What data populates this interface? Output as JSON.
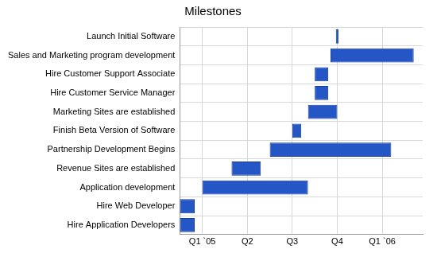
{
  "chart_data": {
    "type": "bar",
    "title": "Milestones",
    "orientation": "horizontal",
    "categories": [
      "Launch Initial Software",
      "Sales and Marketing program development",
      "Hire Customer Support Associate",
      "Hire Customer Service Manager",
      "Marketing Sites are established",
      "Finish Beta Version of Software",
      "Partnership Development Begins",
      "Revenue Sites are established",
      "Application development",
      "Hire Web Developer",
      "Hire Application Developers"
    ],
    "values": [
      [
        3.47,
        3.53
      ],
      [
        3.35,
        5.2
      ],
      [
        3.0,
        3.3
      ],
      [
        3.0,
        3.3
      ],
      [
        2.85,
        3.5
      ],
      [
        2.5,
        2.7
      ],
      [
        2.0,
        4.7
      ],
      [
        1.15,
        1.8
      ],
      [
        0.5,
        2.85
      ],
      [
        0,
        0.33
      ],
      [
        0,
        0.33
      ]
    ],
    "color": "#2457c5",
    "xlim": [
      0,
      5.4
    ],
    "xticks": [
      {
        "value": 0.5,
        "label": "Q1 `05"
      },
      {
        "value": 1.5,
        "label": "Q2"
      },
      {
        "value": 2.5,
        "label": "Q3"
      },
      {
        "value": 3.5,
        "label": "Q4"
      },
      {
        "value": 4.5,
        "label": "Q1 `06"
      }
    ],
    "grid": true
  }
}
